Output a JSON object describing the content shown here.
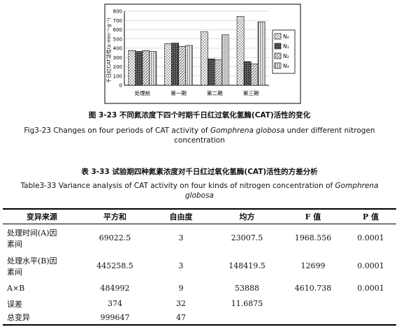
{
  "figure": {
    "caption_cn": "图 3-23 不同氮浓度下四个时期千日红过氧化氢酶(CAT)活性的变化",
    "caption_en_prefix": "Fig3-23 Changes on four periods of CAT activity of ",
    "caption_en_species": "Gomphrena globosa",
    "caption_en_suffix": " under different nitrogen",
    "caption_en_line2": "concentration"
  },
  "chart_data": {
    "type": "bar",
    "ylabel": "千日红CAT活性(u·min⁻¹·g⁻¹)",
    "ylim": [
      0,
      800
    ],
    "yticks": [
      0,
      100,
      200,
      300,
      400,
      500,
      600,
      700,
      800
    ],
    "categories": [
      "处理前",
      "第一期",
      "第二期",
      "第三期"
    ],
    "legend_position": "right",
    "series": [
      {
        "name": "N₀",
        "values": [
          375,
          450,
          580,
          745
        ]
      },
      {
        "name": "N₁",
        "values": [
          365,
          455,
          285,
          255
        ]
      },
      {
        "name": "N₂",
        "values": [
          375,
          420,
          275,
          230
        ]
      },
      {
        "name": "N₃",
        "values": [
          365,
          430,
          545,
          685
        ]
      }
    ]
  },
  "table": {
    "caption_cn": "表 3-33 试验期四种氮素浓度对千日红过氧化氢酶(CAT)活性的方差分析",
    "caption_en_prefix": "Table3-33 Variance analysis of CAT activity on four kinds of nitrogen concentration of ",
    "caption_en_species_1": "Gomphrena",
    "caption_en_species_2": "globosa",
    "headers": [
      "变异来源",
      "平方和",
      "自由度",
      "均方",
      "F 值",
      "P 值"
    ],
    "rows": [
      {
        "source_1": "处理时间(A)因",
        "source_2": "素间",
        "ss": "69022.5",
        "df": "3",
        "ms": "23007.5",
        "f": "1968.556",
        "p": "0.0001"
      },
      {
        "source_1": "处理水平(B)因",
        "source_2": "素间",
        "ss": "445258.5",
        "df": "3",
        "ms": "148419.5",
        "f": "12699",
        "p": "0.0001"
      },
      {
        "source_1": "A×B",
        "source_2": "",
        "ss": "484992",
        "df": "9",
        "ms": "53888",
        "f": "4610.738",
        "p": "0.0001"
      },
      {
        "source_1": "误差",
        "source_2": "",
        "ss": "374",
        "df": "32",
        "ms": "11.6875",
        "f": "",
        "p": ""
      },
      {
        "source_1": "总变异",
        "source_2": "",
        "ss": "999647",
        "df": "47",
        "ms": "",
        "f": "",
        "p": ""
      }
    ]
  }
}
